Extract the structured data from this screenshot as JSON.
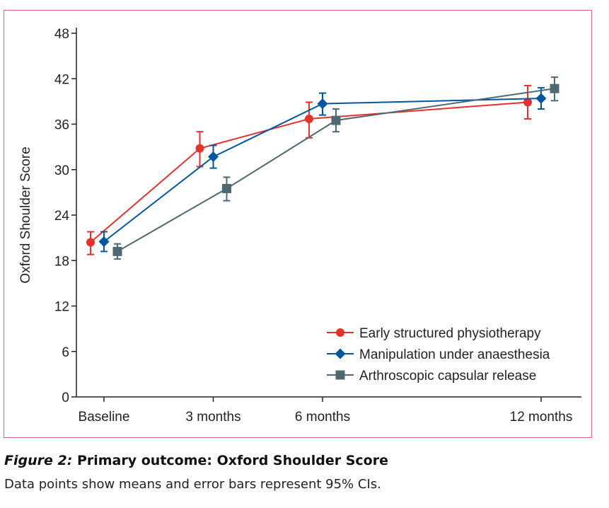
{
  "chart_data": {
    "type": "line",
    "ylabel": "Oxford Shoulder Score",
    "xlabel": "",
    "ylim": [
      0,
      48
    ],
    "yticks": [
      "0",
      "6",
      "12",
      "18",
      "24",
      "30",
      "36",
      "42",
      "48"
    ],
    "categories": [
      "Baseline",
      "3 months",
      "6 months",
      "12 months"
    ],
    "x_months": [
      0,
      3,
      6,
      12
    ],
    "legend_position": "bottom-right",
    "grid": false,
    "series": [
      {
        "name": "Early structured physiotherapy",
        "color": "#e8312a",
        "marker": "circle",
        "values": [
          20.4,
          32.8,
          36.7,
          38.9
        ],
        "ci_low": [
          18.8,
          30.4,
          34.2,
          36.7
        ],
        "ci_high": [
          21.8,
          35.0,
          38.9,
          41.1
        ]
      },
      {
        "name": "Manipulation under anaesthesia",
        "color": "#0057a0",
        "marker": "diamond",
        "values": [
          20.5,
          31.7,
          38.7,
          39.4
        ],
        "ci_low": [
          19.2,
          30.2,
          37.2,
          38.0
        ],
        "ci_high": [
          21.8,
          33.2,
          40.1,
          40.8
        ]
      },
      {
        "name": "Arthroscopic capsular release",
        "color": "#4f6872",
        "marker": "square",
        "values": [
          19.2,
          27.5,
          36.5,
          40.7
        ],
        "ci_low": [
          18.2,
          25.9,
          35.0,
          39.1
        ],
        "ci_high": [
          20.2,
          29.0,
          38.0,
          42.2
        ]
      }
    ]
  },
  "caption": {
    "figure_label": "Figure 2:",
    "title": "Primary outcome: Oxford Shoulder Score",
    "description": "Data points show means and error bars represent 95% CIs."
  }
}
